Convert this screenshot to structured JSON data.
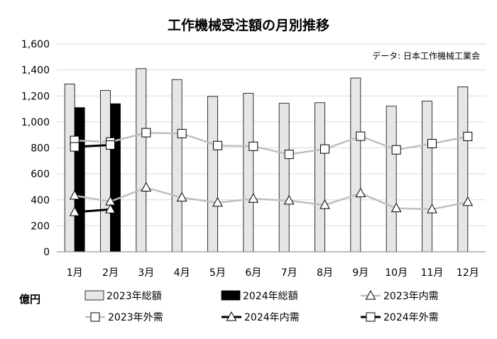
{
  "chart_data": {
    "type": "bar",
    "title": "工作機械受注額の月別推移",
    "annotation": "データ: 日本工作機械工業会",
    "unit_label": "億円",
    "categories": [
      "1月",
      "2月",
      "3月",
      "4月",
      "5月",
      "6月",
      "7月",
      "8月",
      "9月",
      "10月",
      "11月",
      "12月"
    ],
    "ylim": [
      0,
      1600
    ],
    "yticks": [
      0,
      200,
      400,
      600,
      800,
      1000,
      1200,
      1400,
      1600
    ],
    "ytick_labels": [
      "0",
      "200",
      "400",
      "600",
      "800",
      "1,000",
      "1,200",
      "1,400",
      "1,600"
    ],
    "grid": true,
    "legend_position": "bottom",
    "bar_series": [
      {
        "name": "2023年総額",
        "color": "#e6e6e6",
        "values": [
          1292,
          1242,
          1410,
          1326,
          1196,
          1220,
          1143,
          1148,
          1338,
          1121,
          1160,
          1270
        ]
      },
      {
        "name": "2024年総額",
        "color": "#000000",
        "values": [
          1110,
          1140,
          null,
          null,
          null,
          null,
          null,
          null,
          null,
          null,
          null,
          null
        ]
      }
    ],
    "line_series": [
      {
        "name": "2023年内需",
        "color": "#bfbfbf",
        "marker": "triangle",
        "values": [
          432,
          387,
          494,
          417,
          378,
          408,
          394,
          360,
          450,
          335,
          327,
          383
        ]
      },
      {
        "name": "2023年外需",
        "color": "#bfbfbf",
        "marker": "square",
        "values": [
          857,
          845,
          917,
          910,
          818,
          812,
          750,
          791,
          890,
          785,
          833,
          888
        ]
      },
      {
        "name": "2024年内需",
        "color": "#000000",
        "marker": "triangle",
        "values": [
          305,
          326,
          null,
          null,
          null,
          null,
          null,
          null,
          null,
          null,
          null,
          null
        ]
      },
      {
        "name": "2024年外需",
        "color": "#000000",
        "marker": "square",
        "values": [
          808,
          822,
          null,
          null,
          null,
          null,
          null,
          null,
          null,
          null,
          null,
          null
        ]
      }
    ],
    "legend_order": [
      "2023年総額",
      "2024年総額",
      "2023年内需",
      "2023年外需",
      "2024年内需",
      "2024年外需"
    ]
  }
}
